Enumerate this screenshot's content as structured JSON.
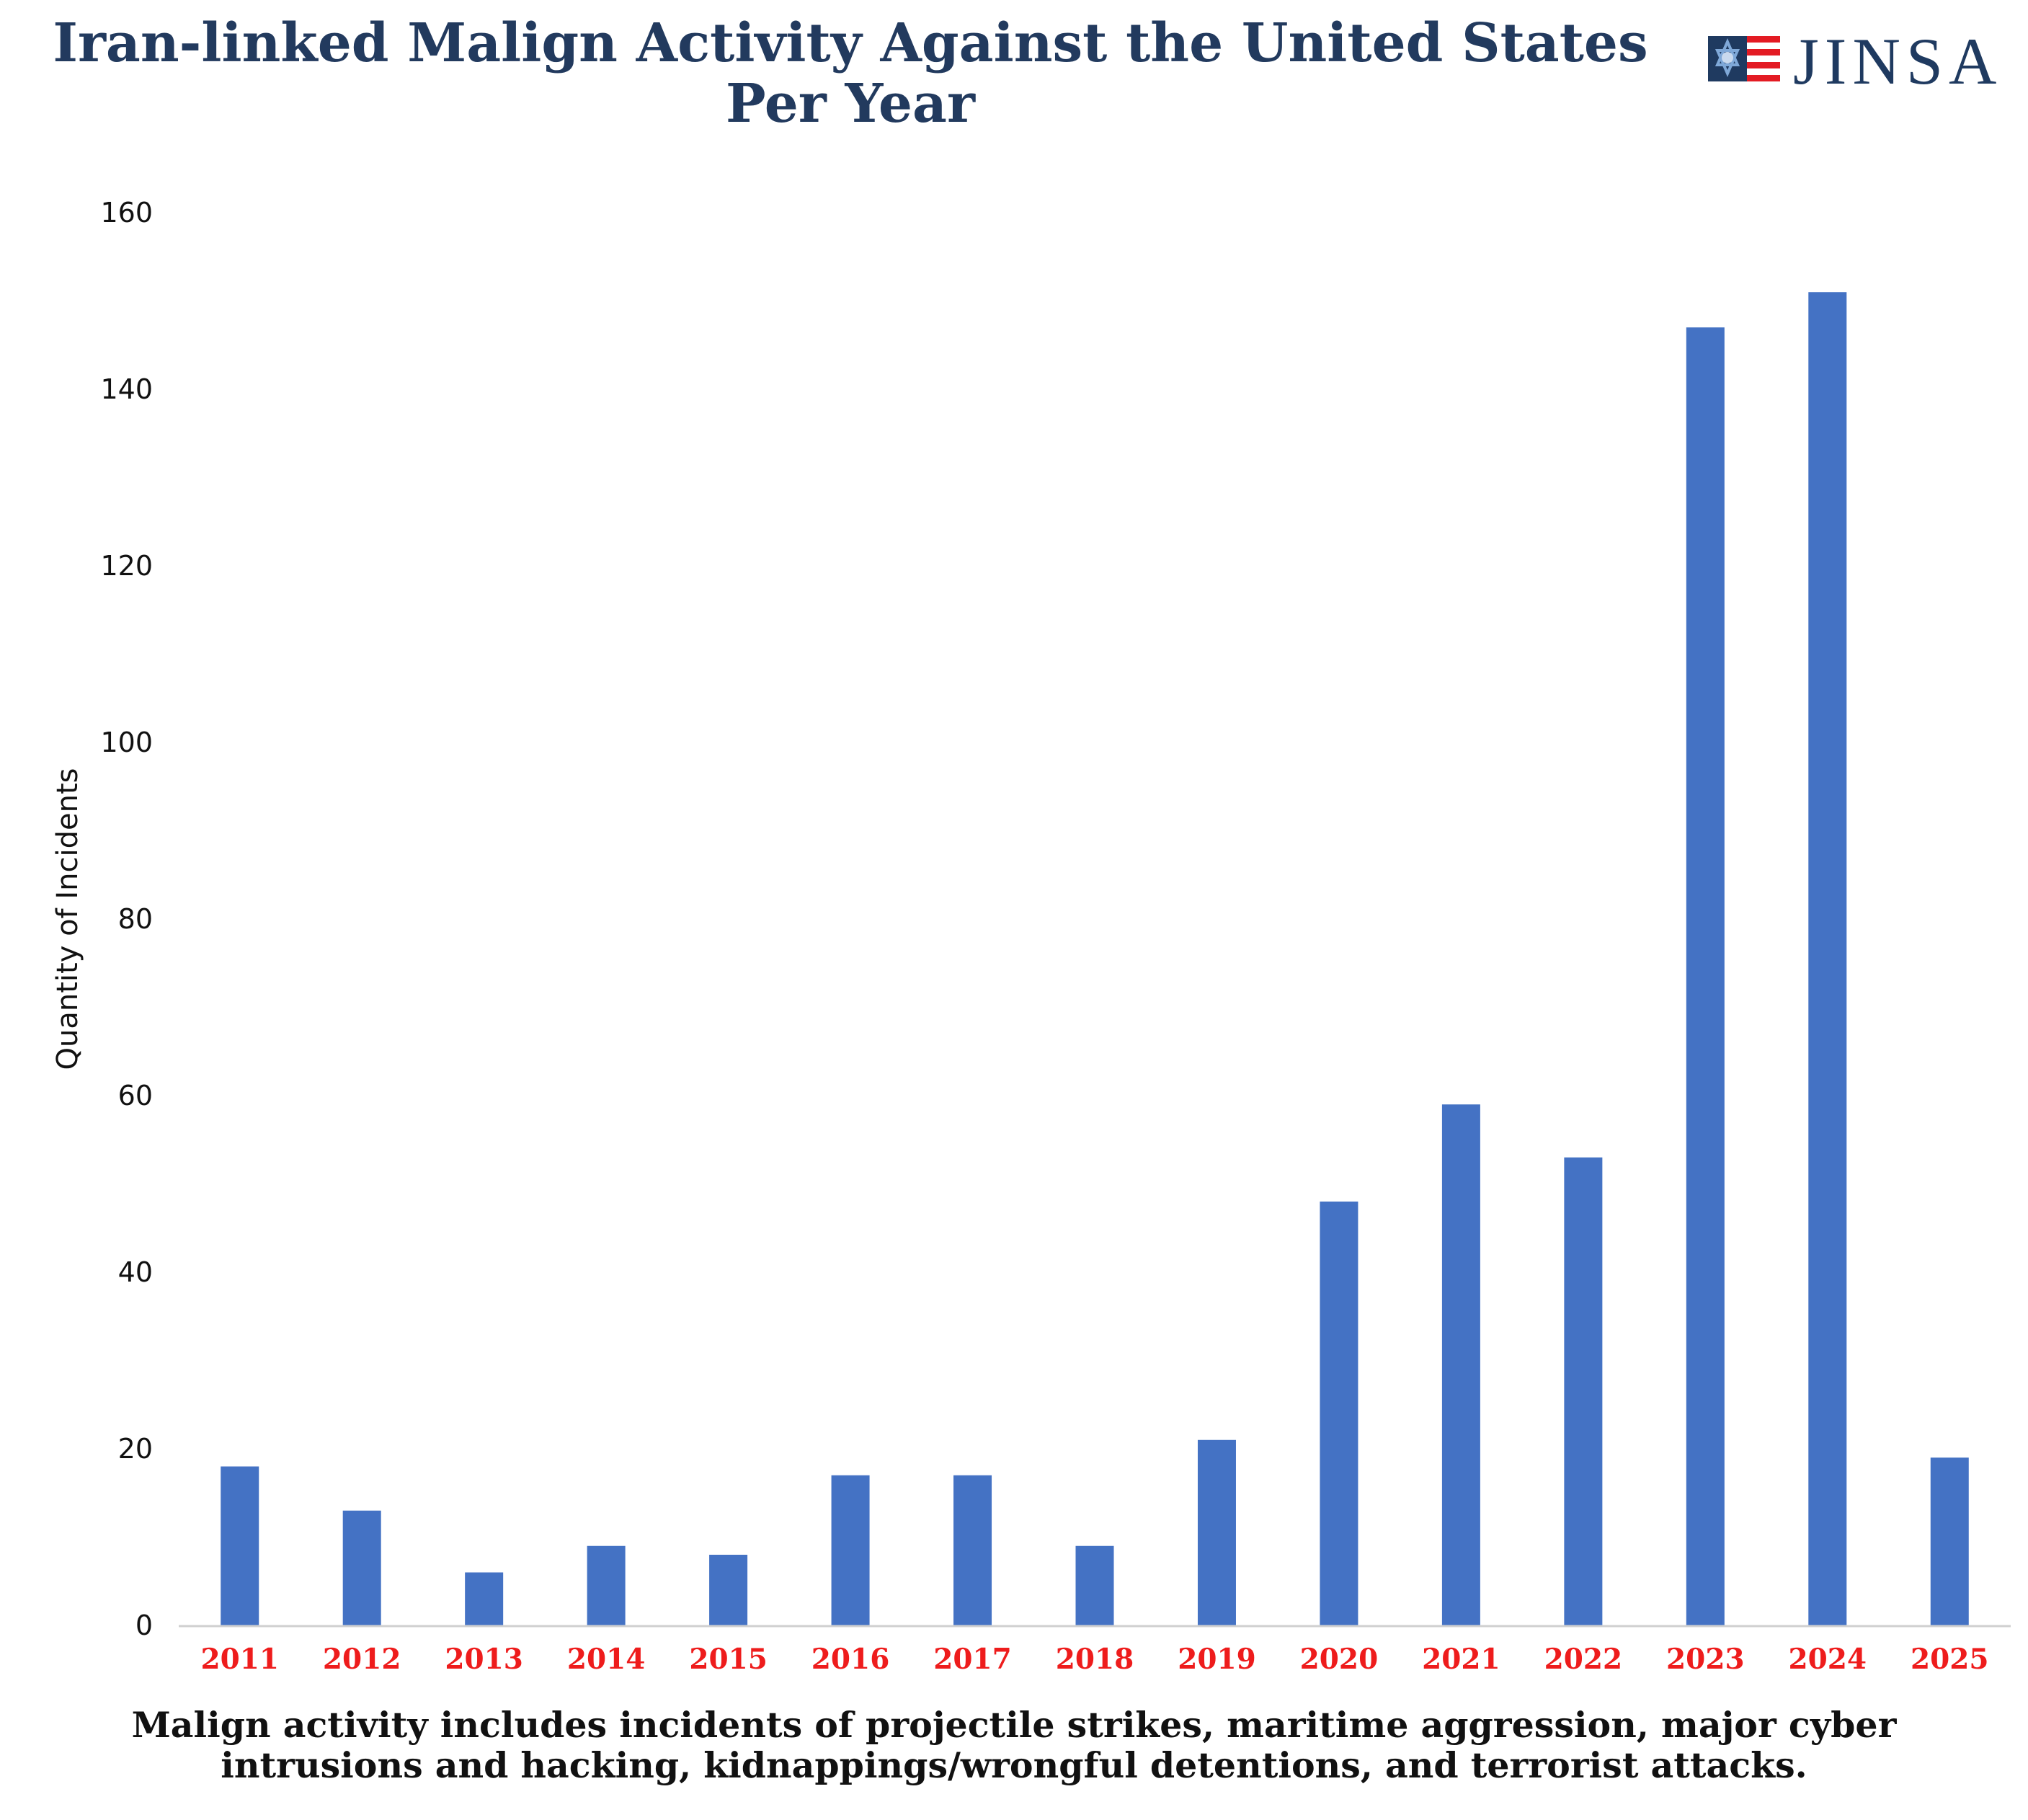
{
  "header": {
    "title_line1": "Iran-linked Malign Activity Against the United States",
    "title_line2": "Per Year",
    "logo_text": "JINSA"
  },
  "footnote": {
    "line1": "Malign activity includes incidents of projectile strikes, maritime aggression, major cyber",
    "line2": "intrusions and hacking, kidnappings/wrongful detentions, and terrorist attacks."
  },
  "colors": {
    "title": "#223a5e",
    "bar": "#4472c4",
    "x_tick": "#ee1c1c",
    "axis": "#d0d0d0",
    "logo_red": "#e31b23",
    "logo_blue": "#1f3a60"
  },
  "chart_data": {
    "type": "bar",
    "title": "Iran-linked Malign Activity Against the United States Per Year",
    "xlabel": "",
    "ylabel": "Quantity of Incidents",
    "categories": [
      "2011",
      "2012",
      "2013",
      "2014",
      "2015",
      "2016",
      "2017",
      "2018",
      "2019",
      "2020",
      "2021",
      "2022",
      "2023",
      "2024",
      "2025"
    ],
    "values": [
      18,
      13,
      6,
      9,
      8,
      17,
      17,
      9,
      21,
      48,
      59,
      53,
      147,
      151,
      19
    ],
    "ylim": [
      0,
      160
    ],
    "yticks": [
      0,
      20,
      40,
      60,
      80,
      100,
      120,
      140,
      160
    ],
    "grid": false,
    "legend": "none"
  }
}
